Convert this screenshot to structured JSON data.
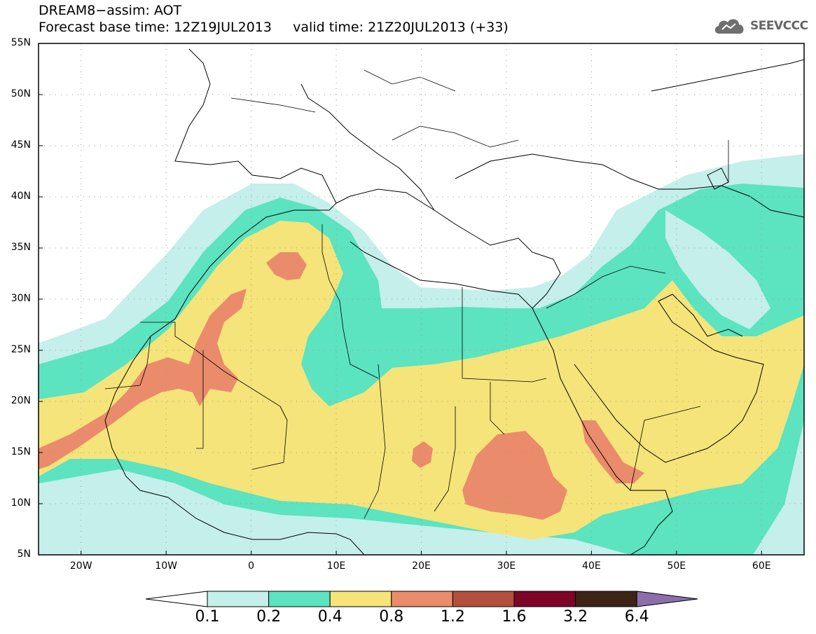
{
  "title_line1": "DREAM8−assim: AOT",
  "title_line2": "Forecast base time: 12Z19JUL2013     valid time: 21Z20JUL2013 (+33)",
  "logo_text": "SEEVCCC",
  "logo_icon": "cloud-logo-icon",
  "lat_labels": [
    "55N",
    "50N",
    "45N",
    "40N",
    "35N",
    "30N",
    "25N",
    "20N",
    "15N",
    "10N",
    "5N"
  ],
  "lon_labels": [
    "20W",
    "10W",
    "0",
    "10E",
    "20E",
    "30E",
    "40E",
    "50E",
    "60E"
  ],
  "legend": {
    "thresholds": [
      "0.1",
      "0.2",
      "0.4",
      "0.8",
      "1.2",
      "1.6",
      "3.2",
      "6.4"
    ],
    "colors": [
      "#ffffff",
      "#c5efea",
      "#5ce3bf",
      "#f5e479",
      "#ea8b6b",
      "#b3503e",
      "#7d0528",
      "#3e2417",
      "#8c6eac"
    ]
  },
  "map_data": {
    "variable": "Aerosol Optical Thickness (AOT)",
    "lat_range": [
      5,
      55
    ],
    "lon_range": [
      -25,
      65
    ]
  }
}
